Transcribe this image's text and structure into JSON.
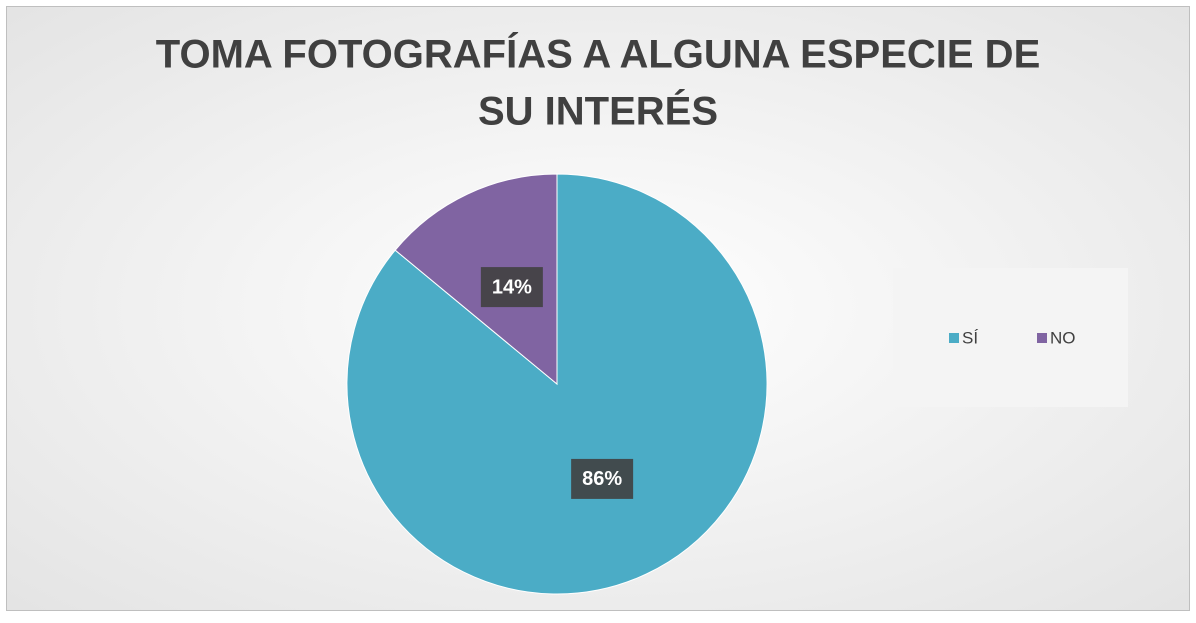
{
  "chart_data": {
    "type": "pie",
    "title": [
      "TOMA FOTOGRAFÍAS A ALGUNA ESPECIE DE",
      "SU INTERÉS"
    ],
    "categories": [
      "SÍ",
      "NO"
    ],
    "values": [
      86,
      14
    ],
    "value_labels": [
      "86%",
      "14%"
    ],
    "colors": [
      "#4bacc6",
      "#8064a2"
    ],
    "legend": "right"
  }
}
